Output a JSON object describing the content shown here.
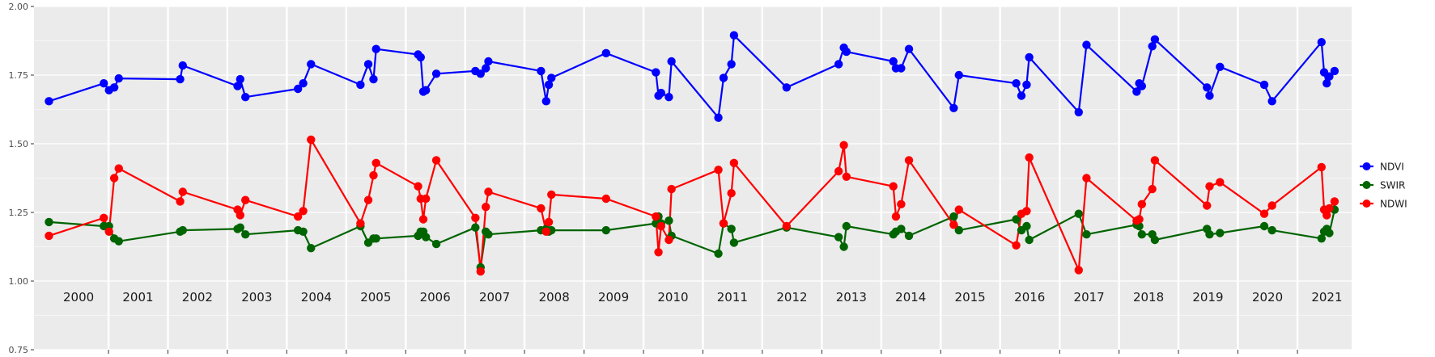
{
  "chart_data": {
    "type": "line",
    "title": "",
    "xlabel": "",
    "ylabel": "",
    "xlim": [
      "1999-10-01",
      "2021-11-30"
    ],
    "ylim": [
      0.75,
      2.0
    ],
    "y_ticks": [
      "0.75",
      "1.00",
      "1.25",
      "1.50",
      "1.75",
      "2.00"
    ],
    "y_tick_values": [
      0.75,
      1.0,
      1.25,
      1.5,
      1.75,
      2.0
    ],
    "year_labels": [
      "2000",
      "2001",
      "2002",
      "2003",
      "2004",
      "2005",
      "2006",
      "2007",
      "2008",
      "2009",
      "2010",
      "2011",
      "2012",
      "2013",
      "2014",
      "2015",
      "2016",
      "2017",
      "2018",
      "2019",
      "2020",
      "2021"
    ],
    "year_label_dates": [
      "2000-07-01",
      "2001-07-01",
      "2002-07-01",
      "2003-07-01",
      "2004-07-01",
      "2005-07-01",
      "2006-07-01",
      "2007-07-01",
      "2008-07-01",
      "2009-07-01",
      "2010-07-01",
      "2011-07-01",
      "2012-07-01",
      "2013-07-01",
      "2014-07-01",
      "2015-07-01",
      "2016-07-01",
      "2017-07-01",
      "2018-07-01",
      "2019-07-01",
      "2020-07-01",
      "2021-07-01"
    ],
    "year_boundary_dates": [
      "2001-01-01",
      "2002-01-01",
      "2003-01-01",
      "2004-01-01",
      "2005-01-01",
      "2006-01-01",
      "2007-01-01",
      "2008-01-01",
      "2009-01-01",
      "2010-01-01",
      "2011-01-01",
      "2012-01-01",
      "2013-01-01",
      "2014-01-01",
      "2015-01-01",
      "2016-01-01",
      "2017-01-01",
      "2018-01-01",
      "2019-01-01",
      "2020-01-01",
      "2021-01-01"
    ],
    "grid": true,
    "legend_position": "right",
    "dates": [
      "2000-01-01",
      "2000-12-03",
      "2001-01-04",
      "2001-02-05",
      "2001-03-05",
      "2002-03-17",
      "2002-04-02",
      "2003-03-05",
      "2003-03-21",
      "2003-04-22",
      "2004-03-10",
      "2004-04-11",
      "2004-05-29",
      "2005-03-29",
      "2005-05-16",
      "2005-06-17",
      "2005-07-03",
      "2006-03-18",
      "2006-04-03",
      "2006-04-19",
      "2006-05-05",
      "2006-07-08",
      "2007-03-05",
      "2007-04-06",
      "2007-05-08",
      "2007-05-24",
      "2008-04-11",
      "2008-05-13",
      "2008-05-29",
      "2008-06-14",
      "2009-05-16",
      "2010-03-18",
      "2010-04-03",
      "2010-04-19",
      "2010-06-06",
      "2010-06-22",
      "2011-04-06",
      "2011-05-08",
      "2011-06-25",
      "2011-07-11",
      "2012-05-29",
      "2013-04-14",
      "2013-05-16",
      "2013-06-01",
      "2014-03-16",
      "2014-04-01",
      "2014-05-03",
      "2014-06-20",
      "2015-03-22",
      "2015-04-23",
      "2016-04-09",
      "2016-05-11",
      "2016-06-12",
      "2016-06-28",
      "2017-04-28",
      "2017-06-15",
      "2018-04-19",
      "2018-05-05",
      "2018-05-21",
      "2018-07-24",
      "2018-08-09",
      "2019-06-25",
      "2019-07-11",
      "2019-09-13",
      "2020-06-11",
      "2020-07-29",
      "2021-05-29",
      "2021-06-14",
      "2021-06-30",
      "2021-07-16",
      "2021-08-17"
    ],
    "series": [
      {
        "name": "NDVI",
        "color": "#0000ff",
        "values": [
          1.655,
          1.72,
          1.695,
          1.705,
          1.738,
          1.735,
          1.785,
          1.71,
          1.735,
          1.67,
          1.7,
          1.72,
          1.79,
          1.715,
          1.79,
          1.735,
          1.845,
          1.825,
          1.815,
          1.69,
          1.695,
          1.755,
          1.765,
          1.755,
          1.775,
          1.8,
          1.765,
          1.655,
          1.715,
          1.74,
          1.83,
          1.76,
          1.675,
          1.685,
          1.67,
          1.8,
          1.595,
          1.74,
          1.79,
          1.895,
          1.705,
          1.79,
          1.85,
          1.835,
          1.8,
          1.775,
          1.775,
          1.845,
          1.63,
          1.75,
          1.72,
          1.675,
          1.715,
          1.815,
          1.615,
          1.86,
          1.69,
          1.72,
          1.71,
          1.855,
          1.88,
          1.705,
          1.675,
          1.78,
          1.715,
          1.655,
          1.87,
          1.76,
          1.72,
          1.745,
          1.765
        ]
      },
      {
        "name": "SWIR",
        "color": "#006400",
        "values": [
          1.215,
          1.2,
          1.2,
          1.155,
          1.145,
          1.18,
          1.185,
          1.19,
          1.195,
          1.17,
          1.185,
          1.18,
          1.12,
          1.2,
          1.14,
          1.155,
          1.155,
          1.165,
          1.18,
          1.18,
          1.16,
          1.135,
          1.195,
          1.05,
          1.18,
          1.17,
          1.185,
          1.19,
          1.18,
          1.185,
          1.185,
          1.21,
          1.235,
          1.21,
          1.22,
          1.165,
          1.1,
          1.21,
          1.19,
          1.14,
          1.195,
          1.16,
          1.125,
          1.2,
          1.17,
          1.18,
          1.19,
          1.165,
          1.235,
          1.185,
          1.225,
          1.185,
          1.2,
          1.15,
          1.245,
          1.17,
          1.205,
          1.2,
          1.17,
          1.17,
          1.15,
          1.19,
          1.17,
          1.175,
          1.2,
          1.185,
          1.155,
          1.18,
          1.19,
          1.175,
          1.26
        ]
      },
      {
        "name": "NDWI",
        "color": "#ff0000",
        "values": [
          1.165,
          1.23,
          1.18,
          1.375,
          1.41,
          1.29,
          1.325,
          1.26,
          1.24,
          1.295,
          1.235,
          1.255,
          1.515,
          1.21,
          1.295,
          1.385,
          1.43,
          1.345,
          1.3,
          1.225,
          1.3,
          1.44,
          1.23,
          1.035,
          1.27,
          1.325,
          1.265,
          1.18,
          1.215,
          1.315,
          1.3,
          1.235,
          1.105,
          1.2,
          1.15,
          1.335,
          1.405,
          1.21,
          1.32,
          1.43,
          1.2,
          1.4,
          1.495,
          1.38,
          1.345,
          1.235,
          1.28,
          1.44,
          1.205,
          1.26,
          1.13,
          1.245,
          1.255,
          1.45,
          1.04,
          1.375,
          1.22,
          1.225,
          1.28,
          1.335,
          1.44,
          1.275,
          1.345,
          1.36,
          1.245,
          1.275,
          1.415,
          1.26,
          1.24,
          1.265,
          1.29
        ]
      }
    ]
  }
}
